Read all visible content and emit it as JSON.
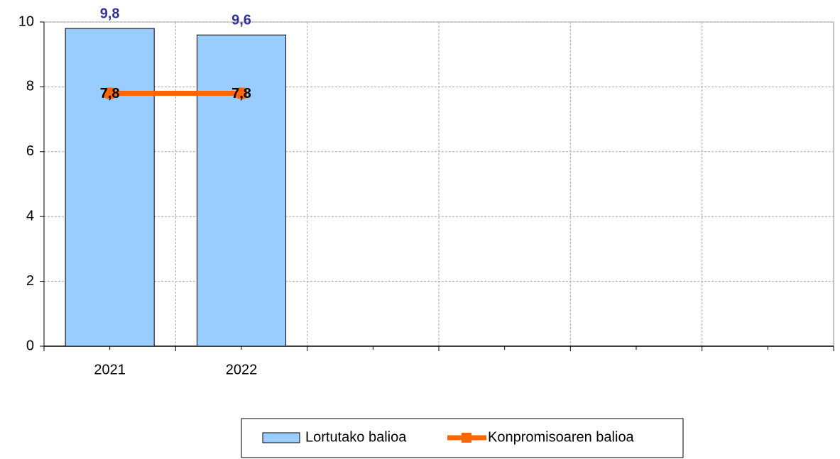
{
  "chart_data": {
    "type": "bar",
    "categories": [
      "2021",
      "2022",
      null,
      null,
      null,
      null
    ],
    "series": [
      {
        "name": "Lortutako balioa",
        "type": "bar",
        "color": "#99ccff",
        "values": [
          9.8,
          9.6,
          null,
          null,
          null,
          null
        ],
        "value_labels": [
          "9,8",
          "9,6",
          null,
          null,
          null,
          null
        ]
      },
      {
        "name": "Konpromisoaren balioa",
        "type": "line",
        "color": "#ff6600",
        "values": [
          7.8,
          7.8,
          null,
          null,
          null,
          null
        ],
        "value_labels": [
          "7,8",
          "7,8",
          null,
          null,
          null,
          null
        ]
      }
    ],
    "ylim": [
      0,
      10
    ],
    "yticks": [
      0,
      2,
      4,
      6,
      8,
      10
    ],
    "grid": true,
    "legend": "bottom"
  }
}
